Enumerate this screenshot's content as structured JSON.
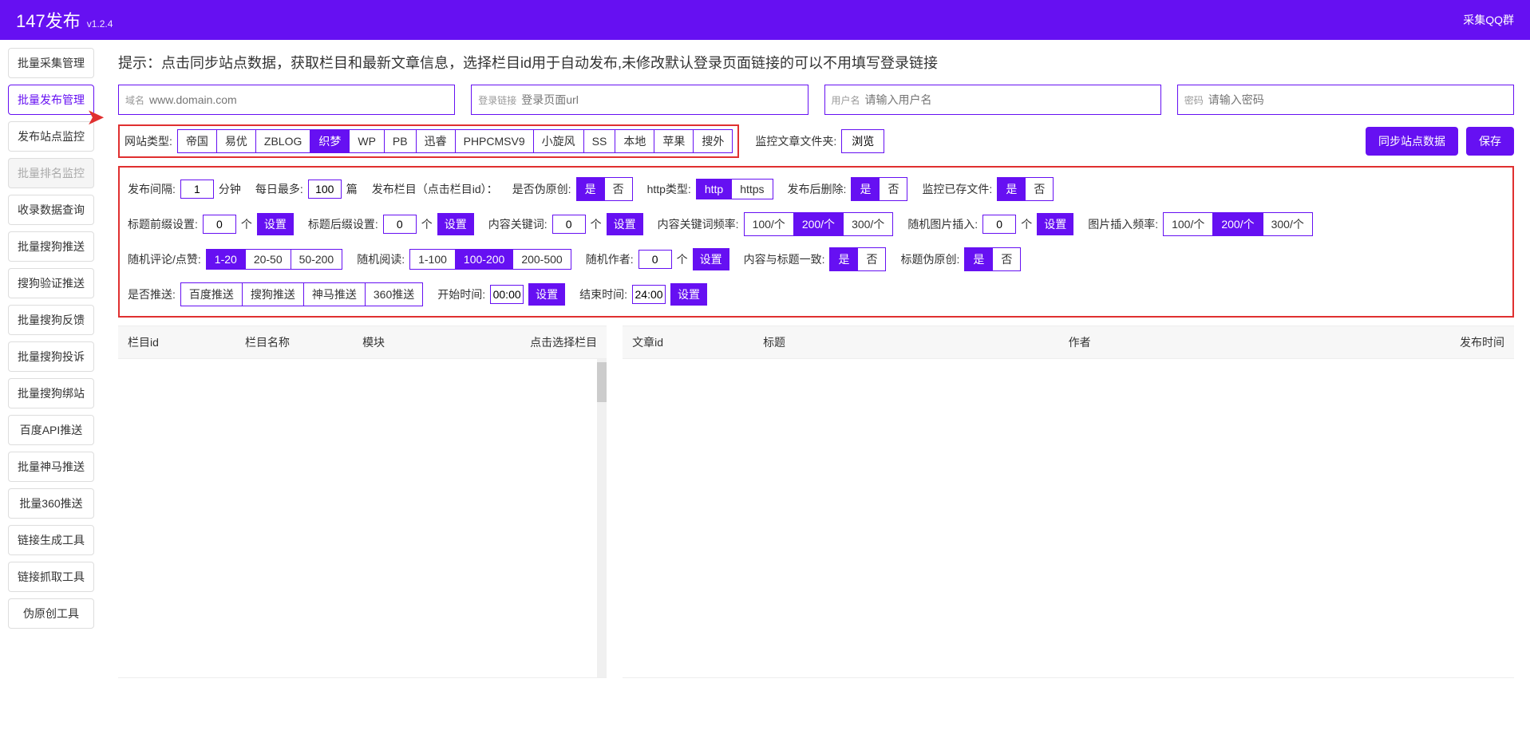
{
  "header": {
    "title": "147发布",
    "version": "v1.2.4",
    "right": "采集QQ群"
  },
  "sidebar": [
    {
      "label": "批量采集管理",
      "state": ""
    },
    {
      "label": "批量发布管理",
      "state": "active"
    },
    {
      "label": "发布站点监控",
      "state": ""
    },
    {
      "label": "批量排名监控",
      "state": "disabled"
    },
    {
      "label": "收录数据查询",
      "state": ""
    },
    {
      "label": "批量搜狗推送",
      "state": ""
    },
    {
      "label": "搜狗验证推送",
      "state": ""
    },
    {
      "label": "批量搜狗反馈",
      "state": ""
    },
    {
      "label": "批量搜狗投诉",
      "state": ""
    },
    {
      "label": "批量搜狗绑站",
      "state": ""
    },
    {
      "label": "百度API推送",
      "state": ""
    },
    {
      "label": "批量神马推送",
      "state": ""
    },
    {
      "label": "批量360推送",
      "state": ""
    },
    {
      "label": "链接生成工具",
      "state": ""
    },
    {
      "label": "链接抓取工具",
      "state": ""
    },
    {
      "label": "伪原创工具",
      "state": ""
    }
  ],
  "tip": "提示：点击同步站点数据，获取栏目和最新文章信息，选择栏目id用于自动发布,未修改默认登录页面链接的可以不用填写登录链接",
  "inputs": {
    "domain": {
      "label": "域名",
      "placeholder": "www.domain.com"
    },
    "login": {
      "label": "登录链接",
      "placeholder": "登录页面url"
    },
    "user": {
      "label": "用户名",
      "placeholder": "请输入用户名"
    },
    "pass": {
      "label": "密码",
      "placeholder": "请输入密码"
    }
  },
  "siteType": {
    "label": "网站类型:",
    "options": [
      "帝国",
      "易优",
      "ZBLOG",
      "织梦",
      "WP",
      "PB",
      "迅睿",
      "PHPCMSV9",
      "小旋风",
      "SS",
      "本地",
      "苹果",
      "搜外"
    ],
    "active": "织梦"
  },
  "monitorFolder": {
    "label": "监控文章文件夹:",
    "btn": "浏览"
  },
  "actions": {
    "sync": "同步站点数据",
    "save": "保存"
  },
  "settings": {
    "row1": {
      "interval": {
        "label": "发布间隔:",
        "value": "1",
        "unit": "分钟"
      },
      "dailyMax": {
        "label": "每日最多:",
        "value": "100",
        "unit": "篇"
      },
      "col": {
        "label": "发布栏目（点击栏目id）："
      },
      "fake": {
        "label": "是否伪原创:",
        "options": [
          "是",
          "否"
        ],
        "active": "是"
      },
      "httpType": {
        "label": "http类型:",
        "options": [
          "http",
          "https"
        ],
        "active": "http"
      },
      "delAfter": {
        "label": "发布后删除:",
        "options": [
          "是",
          "否"
        ],
        "active": "是"
      },
      "monExist": {
        "label": "监控已存文件:",
        "options": [
          "是",
          "否"
        ],
        "active": "是"
      }
    },
    "row2": {
      "prefix": {
        "label": "标题前缀设置:",
        "value": "0",
        "unit": "个",
        "btn": "设置"
      },
      "suffix": {
        "label": "标题后缀设置:",
        "value": "0",
        "unit": "个",
        "btn": "设置"
      },
      "keyword": {
        "label": "内容关键词:",
        "value": "0",
        "unit": "个",
        "btn": "设置"
      },
      "kwFreq": {
        "label": "内容关键词频率:",
        "options": [
          "100/个",
          "200/个",
          "300/个"
        ],
        "active": "200/个"
      },
      "randImg": {
        "label": "随机图片插入:",
        "value": "0",
        "unit": "个",
        "btn": "设置"
      },
      "imgFreq": {
        "label": "图片插入频率:",
        "options": [
          "100/个",
          "200/个",
          "300/个"
        ],
        "active": "200/个"
      }
    },
    "row3": {
      "comment": {
        "label": "随机评论/点赞:",
        "options": [
          "1-20",
          "20-50",
          "50-200"
        ],
        "active": "1-20"
      },
      "read": {
        "label": "随机阅读:",
        "options": [
          "1-100",
          "100-200",
          "200-500"
        ],
        "active": "100-200"
      },
      "author": {
        "label": "随机作者:",
        "value": "0",
        "unit": "个",
        "btn": "设置"
      },
      "match": {
        "label": "内容与标题一致:",
        "options": [
          "是",
          "否"
        ],
        "active": "是"
      },
      "titleFake": {
        "label": "标题伪原创:",
        "options": [
          "是",
          "否"
        ],
        "active": "是"
      }
    },
    "row4": {
      "push": {
        "label": "是否推送:",
        "options": [
          "百度推送",
          "搜狗推送",
          "神马推送",
          "360推送"
        ]
      },
      "start": {
        "label": "开始时间:",
        "value": "00:00",
        "btn": "设置"
      },
      "end": {
        "label": "结束时间:",
        "value": "24:00",
        "btn": "设置"
      }
    }
  },
  "table1": {
    "cols": [
      "栏目id",
      "栏目名称",
      "模块",
      "点击选择栏目"
    ]
  },
  "table2": {
    "cols": [
      "文章id",
      "标题",
      "作者",
      "发布时间"
    ]
  }
}
